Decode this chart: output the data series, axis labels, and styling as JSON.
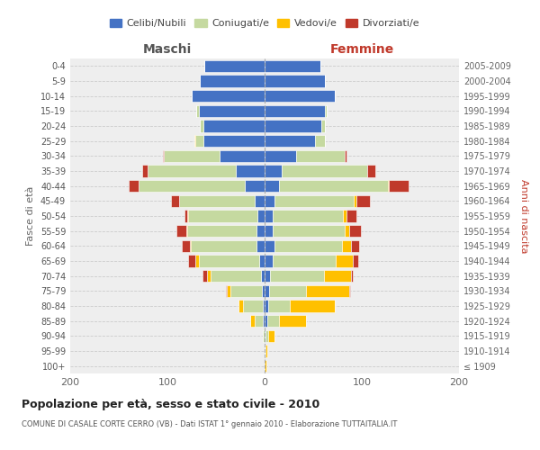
{
  "age_groups": [
    "100+",
    "95-99",
    "90-94",
    "85-89",
    "80-84",
    "75-79",
    "70-74",
    "65-69",
    "60-64",
    "55-59",
    "50-54",
    "45-49",
    "40-44",
    "35-39",
    "30-34",
    "25-29",
    "20-24",
    "15-19",
    "10-14",
    "5-9",
    "0-4"
  ],
  "birth_years": [
    "≤ 1909",
    "1910-1914",
    "1915-1919",
    "1920-1924",
    "1925-1929",
    "1930-1934",
    "1935-1939",
    "1940-1944",
    "1945-1949",
    "1950-1954",
    "1955-1959",
    "1960-1964",
    "1965-1969",
    "1970-1974",
    "1975-1979",
    "1980-1984",
    "1985-1989",
    "1990-1994",
    "1995-1999",
    "2000-2004",
    "2005-2009"
  ],
  "maschi_celibe": [
    0,
    0,
    0,
    2,
    2,
    3,
    4,
    6,
    8,
    8,
    7,
    10,
    20,
    30,
    46,
    63,
    63,
    68,
    75,
    67,
    62
  ],
  "maschi_coniugato": [
    0,
    0,
    2,
    8,
    20,
    32,
    52,
    62,
    68,
    72,
    72,
    78,
    110,
    90,
    58,
    8,
    4,
    2,
    0,
    0,
    0
  ],
  "maschi_vedovo": [
    0,
    0,
    0,
    5,
    5,
    4,
    3,
    3,
    1,
    1,
    1,
    0,
    0,
    0,
    0,
    1,
    0,
    0,
    0,
    0,
    0
  ],
  "maschi_divorziato": [
    0,
    0,
    0,
    0,
    0,
    1,
    5,
    8,
    8,
    10,
    2,
    8,
    10,
    6,
    1,
    0,
    0,
    0,
    0,
    0,
    0
  ],
  "femmine_celibe": [
    0,
    0,
    1,
    3,
    4,
    5,
    6,
    8,
    10,
    8,
    8,
    10,
    15,
    18,
    32,
    52,
    58,
    62,
    72,
    62,
    57
  ],
  "femmine_coniugata": [
    0,
    1,
    3,
    12,
    22,
    38,
    55,
    65,
    70,
    74,
    73,
    82,
    112,
    88,
    50,
    10,
    4,
    2,
    0,
    0,
    0
  ],
  "femmine_vedova": [
    2,
    2,
    6,
    28,
    46,
    44,
    28,
    18,
    9,
    5,
    3,
    2,
    1,
    0,
    0,
    0,
    0,
    0,
    0,
    0,
    0
  ],
  "femmine_divorziata": [
    0,
    0,
    0,
    0,
    0,
    1,
    2,
    5,
    8,
    12,
    10,
    14,
    20,
    8,
    2,
    0,
    0,
    0,
    0,
    0,
    0
  ],
  "color_celibe": "#4472c4",
  "color_coniugato": "#c5d9a0",
  "color_vedovo": "#ffc000",
  "color_divorziato": "#c0392b",
  "title": "Popolazione per età, sesso e stato civile - 2010",
  "subtitle": "COMUNE DI CASALE CORTE CERRO (VB) - Dati ISTAT 1° gennaio 2010 - Elaborazione TUTTAITALIA.IT",
  "xlabel_maschi": "Maschi",
  "xlabel_femmine": "Femmine",
  "ylabel_left": "Fasce di età",
  "ylabel_right": "Anni di nascita",
  "xlim": 200,
  "legend_labels": [
    "Celibi/Nubili",
    "Coniugati/e",
    "Vedovi/e",
    "Divorziati/e"
  ]
}
